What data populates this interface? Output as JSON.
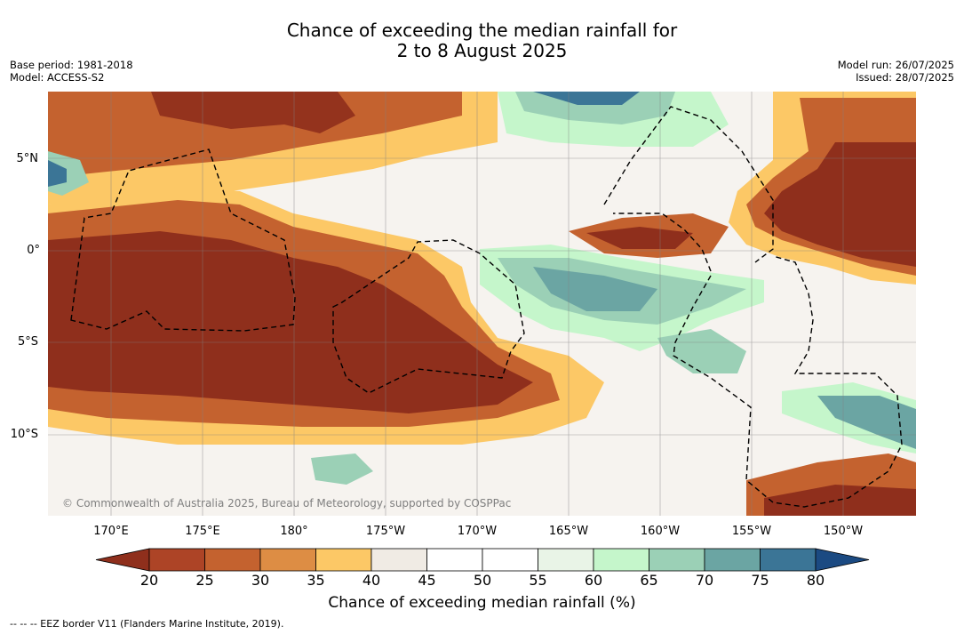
{
  "title_line1": "Chance of exceeding the median rainfall for",
  "title_line2": "2 to 8 August 2025",
  "base_period": "Base period: 1981-2018",
  "model": "Model: ACCESS-S2",
  "model_run": "Model run: 26/07/2025",
  "issued": "Issued: 28/07/2025",
  "copyright": "© Commonwealth of Australia 2025, Bureau of Meteorology, supported by COSPPac",
  "footnote": "--  --  -- EEZ border V11 (Flanders Marine Institute, 2019).",
  "lat_labels": [
    "5°N",
    "0°",
    "5°S",
    "10°S"
  ],
  "lon_labels": [
    "170°E",
    "175°E",
    "180°",
    "175°W",
    "170°W",
    "165°W",
    "160°W",
    "155°W",
    "150°W"
  ],
  "colorbar": {
    "label": "Chance of exceeding median rainfall (%)",
    "ticks": [
      "20",
      "25",
      "30",
      "35",
      "40",
      "45",
      "50",
      "55",
      "60",
      "65",
      "70",
      "75",
      "80"
    ],
    "colors": [
      "#8f2f1c",
      "#ad4426",
      "#c4622f",
      "#dd8d44",
      "#fcc866",
      "#f0ebe4",
      "#ffffff",
      "#ffffff",
      "#e9f4e7",
      "#c5f6cb",
      "#9bd0b6",
      "#6ba5a3",
      "#3b7596",
      "#1b4a82"
    ]
  }
}
